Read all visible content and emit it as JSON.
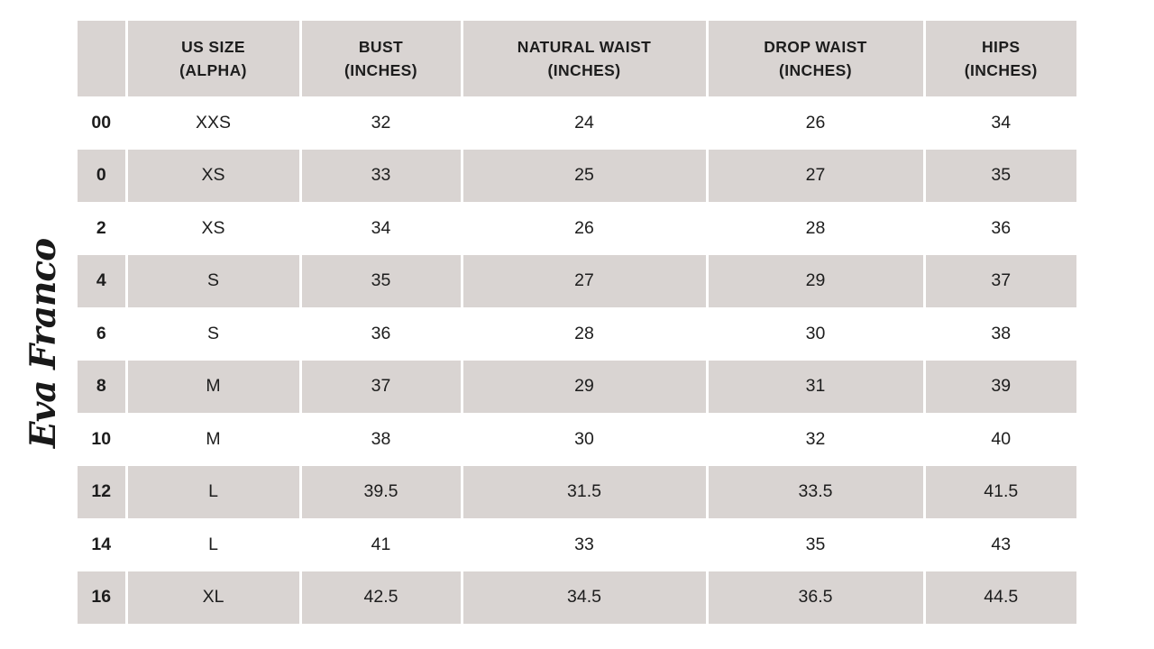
{
  "brand": {
    "logo_text": "Eva Franco"
  },
  "colors": {
    "shade": "#d9d4d2",
    "text": "#1d1d1d",
    "background": "#ffffff"
  },
  "table": {
    "columns": [
      {
        "label": "",
        "sub": ""
      },
      {
        "label": "US SIZE",
        "sub": "(ALPHA)"
      },
      {
        "label": "BUST",
        "sub": "(INCHES)"
      },
      {
        "label": "NATURAL WAIST",
        "sub": "(INCHES)"
      },
      {
        "label": "DROP WAIST",
        "sub": "(INCHES)"
      },
      {
        "label": "HIPS",
        "sub": "(INCHES)"
      }
    ],
    "rows": [
      [
        "00",
        "XXS",
        "32",
        "24",
        "26",
        "34"
      ],
      [
        "0",
        "XS",
        "33",
        "25",
        "27",
        "35"
      ],
      [
        "2",
        "XS",
        "34",
        "26",
        "28",
        "36"
      ],
      [
        "4",
        "S",
        "35",
        "27",
        "29",
        "37"
      ],
      [
        "6",
        "S",
        "36",
        "28",
        "30",
        "38"
      ],
      [
        "8",
        "M",
        "37",
        "29",
        "31",
        "39"
      ],
      [
        "10",
        "M",
        "38",
        "30",
        "32",
        "40"
      ],
      [
        "12",
        "L",
        "39.5",
        "31.5",
        "33.5",
        "41.5"
      ],
      [
        "14",
        "L",
        "41",
        "33",
        "35",
        "43"
      ],
      [
        "16",
        "XL",
        "42.5",
        "34.5",
        "36.5",
        "44.5"
      ]
    ]
  },
  "chart_data": {
    "type": "table",
    "columns": [
      "",
      "US SIZE (ALPHA)",
      "BUST (INCHES)",
      "NATURAL WAIST (INCHES)",
      "DROP WAIST (INCHES)",
      "HIPS (INCHES)"
    ],
    "rows": [
      [
        "00",
        "XXS",
        32,
        24,
        26,
        34
      ],
      [
        "0",
        "XS",
        33,
        25,
        27,
        35
      ],
      [
        "2",
        "XS",
        34,
        26,
        28,
        36
      ],
      [
        "4",
        "S",
        35,
        27,
        29,
        37
      ],
      [
        "6",
        "S",
        36,
        28,
        30,
        38
      ],
      [
        "8",
        "M",
        37,
        29,
        31,
        39
      ],
      [
        "10",
        "M",
        38,
        30,
        32,
        40
      ],
      [
        "12",
        "L",
        39.5,
        31.5,
        33.5,
        41.5
      ],
      [
        "14",
        "L",
        41,
        33,
        35,
        43
      ],
      [
        "16",
        "XL",
        42.5,
        34.5,
        36.5,
        44.5
      ]
    ],
    "layout_hints": {
      "header_background": "#d9d4d2",
      "row_striping": "white/gray alternating starting white",
      "first_column_style": "bold numeric size, no header label",
      "logo": "Eva Franco script signature rotated 90deg CCW on left edge"
    }
  }
}
